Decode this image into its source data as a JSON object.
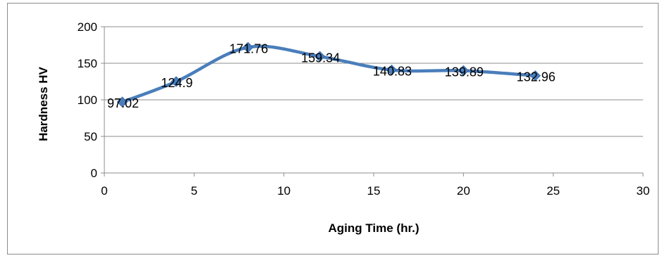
{
  "chart_data": {
    "type": "line",
    "title": "",
    "xlabel": "Aging Time (hr.)",
    "ylabel": "Hardness HV",
    "xlim": [
      0,
      30
    ],
    "ylim": [
      0,
      200
    ],
    "xticks": [
      0,
      5,
      10,
      15,
      20,
      25,
      30
    ],
    "yticks": [
      0,
      50,
      100,
      150,
      200
    ],
    "xtick_labels": [
      "0",
      "5",
      "10",
      "15",
      "20",
      "25",
      "30"
    ],
    "ytick_labels": [
      "0",
      "50",
      "100",
      "150",
      "200"
    ],
    "grid": "horizontal",
    "legend": "none",
    "series": [
      {
        "x": [
          1,
          4,
          8,
          12,
          16,
          20,
          24
        ],
        "y": [
          97.02,
          124.9,
          171.76,
          159.34,
          140.83,
          139.89,
          132.96
        ],
        "labels": [
          "97.02",
          "124.9",
          "171.76",
          "159.34",
          "140.83",
          "139.89",
          "132.96"
        ],
        "color": "#4a7ebb",
        "marker": "diamond"
      }
    ]
  }
}
